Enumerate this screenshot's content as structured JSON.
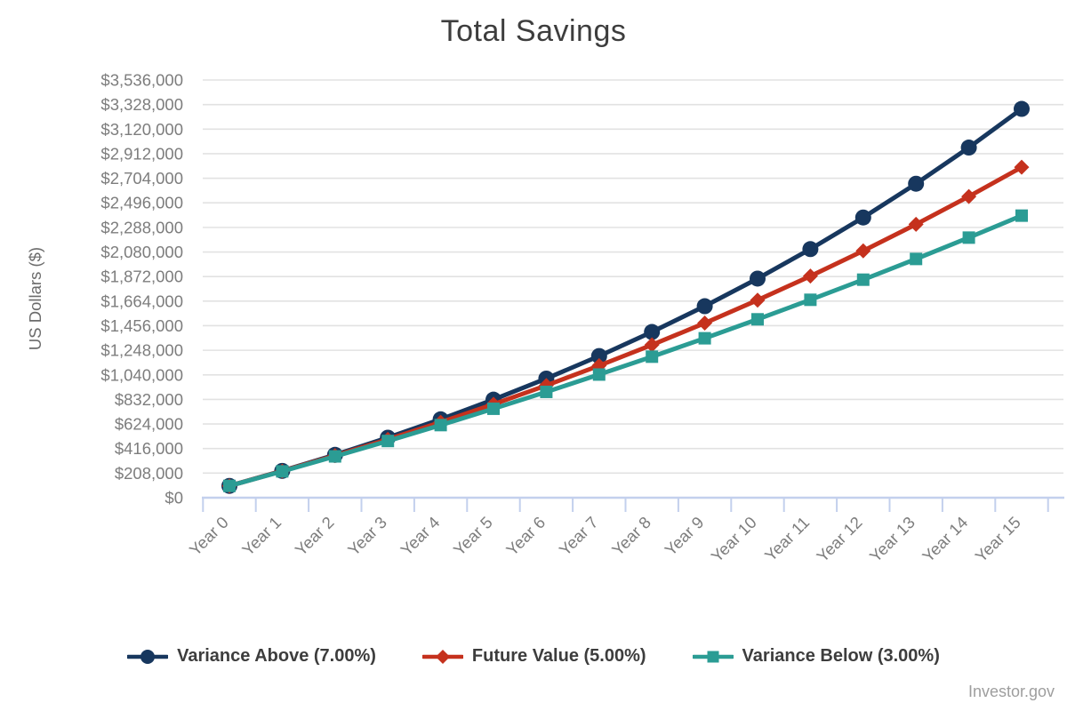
{
  "title": "Total Savings",
  "y_axis_label": "US Dollars ($)",
  "watermark": "Investor.gov",
  "colors": {
    "navy": "#17375e",
    "red": "#c5311d",
    "teal": "#2b9c94",
    "grid": "#e2e2e2",
    "axis_line": "#c3d0ed",
    "tick_text": "#7d7d7d",
    "axis_title_text": "#6b6b6b",
    "title_text": "#3d3d3d",
    "legend_text": "#3d3d3d",
    "watermark_text": "#9e9e9e"
  },
  "chart_data": {
    "type": "line",
    "title": "Total Savings",
    "xlabel": "",
    "ylabel": "US Dollars ($)",
    "categories": [
      "Year 0",
      "Year 1",
      "Year 2",
      "Year 3",
      "Year 4",
      "Year 5",
      "Year 6",
      "Year 7",
      "Year 8",
      "Year 9",
      "Year 10",
      "Year 11",
      "Year 12",
      "Year 13",
      "Year 14",
      "Year 15"
    ],
    "ylim": [
      0,
      3536000
    ],
    "y_tick_step": 208000,
    "grid": "horizontal",
    "legend_position": "bottom",
    "series": [
      {
        "name": "Variance Above (7.00%)",
        "color": "#17375e",
        "marker": "circle",
        "values": [
          100000,
          227000,
          362890,
          508292,
          663873,
          830344,
          1008468,
          1199061,
          1402995,
          1621205,
          1854689,
          2104517,
          2371833,
          2657862,
          2963912,
          3291386
        ]
      },
      {
        "name": "Future Value (5.00%)",
        "color": "#c5311d",
        "marker": "diamond",
        "values": [
          100000,
          225000,
          356250,
          494063,
          638766,
          790704,
          950239,
          1117751,
          1293639,
          1478321,
          1672237,
          1875848,
          2089641,
          2314123,
          2549829,
          2797320
        ]
      },
      {
        "name": "Variance Below (3.00%)",
        "color": "#2b9c94",
        "marker": "square",
        "values": [
          100000,
          223000,
          349690,
          480181,
          614586,
          753024,
          895614,
          1042483,
          1193757,
          1349570,
          1510057,
          1675359,
          1845620,
          2020988,
          2201618,
          2387666
        ]
      }
    ]
  }
}
